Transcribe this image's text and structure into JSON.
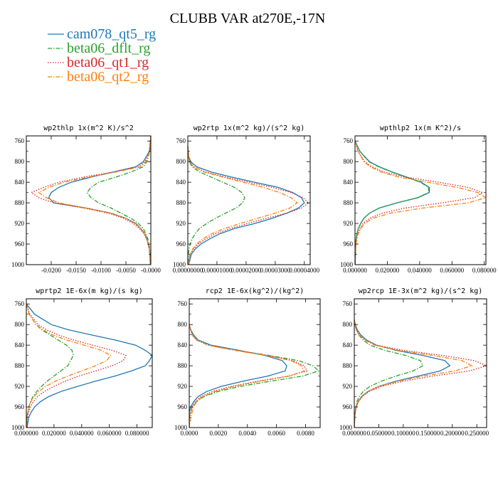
{
  "figure": {
    "title": "CLUBB VAR at270E,-17N"
  },
  "legend": [
    {
      "name": "cam078_qt5_rg",
      "color": "#1f77b4",
      "dash": "solid"
    },
    {
      "name": "beta06_dflt_rg",
      "color": "#2ca02c",
      "dash": "dashdot"
    },
    {
      "name": "beta06_qt1_rg",
      "color": "#d62728",
      "dash": "dotted"
    },
    {
      "name": "beta06_qt2_rg",
      "color": "#ff7f0e",
      "dash": "dashdot"
    }
  ],
  "chart_data": [
    {
      "type": "line",
      "title": "wp2thlp  1x(m^2 K)/s^2",
      "xlim": [
        -0.025,
        0.0
      ],
      "ylim": [
        1000,
        750
      ],
      "yticks": [
        "760",
        "800",
        "840",
        "880",
        "920",
        "960",
        "1000"
      ],
      "xticks": [
        {
          "v": -0.02,
          "t": "-0.0200"
        },
        {
          "v": -0.015,
          "t": "-0.0150"
        },
        {
          "v": -0.01,
          "t": "-0.0100"
        },
        {
          "v": -0.005,
          "t": "-0.0050"
        },
        {
          "v": 0.0,
          "t": "-0.0000"
        }
      ],
      "y": [
        750,
        780,
        800,
        810,
        820,
        830,
        840,
        850,
        860,
        870,
        880,
        890,
        900,
        910,
        920,
        930,
        940,
        950,
        960,
        970,
        980,
        1000
      ],
      "series": [
        {
          "legend": 0,
          "values": [
            0.0,
            -0.0003,
            -0.0015,
            -0.003,
            -0.0075,
            -0.012,
            -0.016,
            -0.0185,
            -0.02,
            -0.0205,
            -0.0195,
            -0.013,
            -0.008,
            -0.005,
            -0.003,
            -0.002,
            -0.0012,
            -0.0008,
            -0.0005,
            -0.0003,
            -0.0002,
            -0.0001
          ]
        },
        {
          "legend": 1,
          "values": [
            0.0,
            -0.0002,
            -0.0008,
            -0.0015,
            -0.004,
            -0.007,
            -0.0105,
            -0.012,
            -0.0128,
            -0.012,
            -0.0105,
            -0.008,
            -0.006,
            -0.004,
            -0.0025,
            -0.0015,
            -0.001,
            -0.0006,
            -0.0004,
            -0.0002,
            -0.0001,
            0.0
          ]
        },
        {
          "legend": 2,
          "values": [
            0.0,
            -0.0002,
            -0.0012,
            -0.0025,
            -0.0075,
            -0.0135,
            -0.0185,
            -0.0215,
            -0.024,
            -0.0225,
            -0.0195,
            -0.0135,
            -0.0085,
            -0.0055,
            -0.0035,
            -0.0023,
            -0.0014,
            -0.0009,
            -0.0005,
            -0.0003,
            -0.0002,
            -0.0001
          ]
        },
        {
          "legend": 3,
          "values": [
            0.0,
            -0.0002,
            -0.001,
            -0.002,
            -0.007,
            -0.0125,
            -0.0175,
            -0.0205,
            -0.0225,
            -0.021,
            -0.0185,
            -0.013,
            -0.008,
            -0.005,
            -0.0032,
            -0.002,
            -0.0012,
            -0.0008,
            -0.0005,
            -0.0003,
            -0.0002,
            -0.0001
          ]
        }
      ]
    },
    {
      "type": "line",
      "title": "wp2rtp  1x(m^2 kg)/(s^2 kg)",
      "xlim": [
        0.0,
        4.2e-05
      ],
      "ylim": [
        1000,
        750
      ],
      "yticks": [
        "760",
        "800",
        "840",
        "880",
        "920",
        "960",
        "1000"
      ],
      "xticks": [
        {
          "v": 0.0,
          "t": "0.00000000"
        },
        {
          "v": 1e-05,
          "t": "0.00001000"
        },
        {
          "v": 2e-05,
          "t": "0.00002000"
        },
        {
          "v": 3e-05,
          "t": "0.00003000"
        },
        {
          "v": 4e-05,
          "t": "0.00004000"
        }
      ],
      "y": [
        770,
        790,
        800,
        810,
        820,
        830,
        840,
        850,
        860,
        870,
        880,
        890,
        900,
        910,
        920,
        930,
        940,
        950,
        960,
        970,
        980,
        1000
      ],
      "series": [
        {
          "legend": 0,
          "values": [
            0.0,
            3e-07,
            1e-06,
            3e-06,
            8e-06,
            1.5e-05,
            2.3e-05,
            3.1e-05,
            3.6e-05,
            3.9e-05,
            4e-05,
            3.8e-05,
            3.4e-05,
            2.9e-05,
            2.3e-05,
            1.6e-05,
            1.1e-05,
            7.5e-06,
            4.5e-06,
            2.5e-06,
            1.2e-06,
            3e-07
          ]
        },
        {
          "legend": 1,
          "values": [
            0.0,
            2e-07,
            5e-07,
            1.5e-06,
            4e-06,
            8e-06,
            1.2e-05,
            1.6e-05,
            1.85e-05,
            1.95e-05,
            1.88e-05,
            1.65e-05,
            1.3e-05,
            9.5e-06,
            6.5e-06,
            4e-06,
            2.5e-06,
            1.5e-06,
            8e-07,
            4e-07,
            2e-07,
            0.0
          ]
        },
        {
          "legend": 2,
          "values": [
            0.0,
            2e-07,
            7e-07,
            2e-06,
            6e-06,
            1.3e-05,
            2.1e-05,
            2.9e-05,
            3.55e-05,
            3.95e-05,
            4.15e-05,
            3.9e-05,
            3.4e-05,
            2.7e-05,
            2.05e-05,
            1.45e-05,
            9.5e-06,
            6.2e-06,
            3.6e-06,
            1.9e-06,
            9e-07,
            2e-07
          ]
        },
        {
          "legend": 3,
          "values": [
            0.0,
            2e-07,
            6e-07,
            2e-06,
            5.5e-06,
            1.2e-05,
            1.9e-05,
            2.6e-05,
            3.15e-05,
            3.55e-05,
            3.75e-05,
            3.5e-05,
            3e-05,
            2.4e-05,
            1.8e-05,
            1.25e-05,
            8.2e-06,
            5.2e-06,
            3e-06,
            1.6e-06,
            7e-07,
            2e-07
          ]
        }
      ]
    },
    {
      "type": "line",
      "title": "wpthlp2  1x(m K^2)/s",
      "xlim": [
        0.0,
        0.081
      ],
      "ylim": [
        1000,
        750
      ],
      "yticks": [
        "760",
        "800",
        "840",
        "880",
        "920",
        "960",
        "1000"
      ],
      "xticks": [
        {
          "v": 0.0,
          "t": "0.000000"
        },
        {
          "v": 0.02,
          "t": "0.020000"
        },
        {
          "v": 0.04,
          "t": "0.040000"
        },
        {
          "v": 0.06,
          "t": "0.060000"
        },
        {
          "v": 0.08,
          "t": "0.080000"
        }
      ],
      "y": [
        760,
        780,
        800,
        810,
        820,
        830,
        840,
        850,
        860,
        870,
        880,
        890,
        900,
        910,
        920,
        930,
        940,
        950,
        960,
        980,
        1000
      ],
      "series": [
        {
          "legend": 0,
          "values": [
            0.0,
            0.003,
            0.009,
            0.015,
            0.023,
            0.032,
            0.041,
            0.046,
            0.046,
            0.039,
            0.026,
            0.015,
            0.009,
            0.0055,
            0.0035,
            0.002,
            0.0012,
            0.0007,
            0.0004,
            0.0002,
            0.0001
          ]
        },
        {
          "legend": 1,
          "values": [
            0.0,
            0.003,
            0.0085,
            0.0145,
            0.0225,
            0.0315,
            0.0405,
            0.0455,
            0.0455,
            0.0385,
            0.026,
            0.015,
            0.009,
            0.0055,
            0.0035,
            0.002,
            0.0012,
            0.0007,
            0.0004,
            0.0002,
            0.0001
          ]
        },
        {
          "legend": 2,
          "values": [
            0.0,
            0.002,
            0.006,
            0.0105,
            0.018,
            0.031,
            0.052,
            0.07,
            0.079,
            0.074,
            0.054,
            0.031,
            0.017,
            0.009,
            0.005,
            0.003,
            0.0017,
            0.001,
            0.0005,
            0.0002,
            0.0001
          ]
        },
        {
          "legend": 3,
          "values": [
            0.0,
            0.0018,
            0.0055,
            0.0095,
            0.016,
            0.027,
            0.045,
            0.063,
            0.076,
            0.081,
            0.07,
            0.042,
            0.022,
            0.011,
            0.006,
            0.0035,
            0.002,
            0.0012,
            0.0006,
            0.0003,
            0.0001
          ]
        }
      ]
    },
    {
      "type": "line",
      "title": "wprtp2  1E-6x(m kg)/(s kg)",
      "xlim": [
        0.0,
        0.091
      ],
      "ylim": [
        1000,
        750
      ],
      "yticks": [
        "760",
        "800",
        "840",
        "880",
        "920",
        "960",
        "1000"
      ],
      "xticks": [
        {
          "v": 0.0,
          "t": "0.000000"
        },
        {
          "v": 0.02,
          "t": "0.020000"
        },
        {
          "v": 0.04,
          "t": "0.040000"
        },
        {
          "v": 0.06,
          "t": "0.060000"
        },
        {
          "v": 0.08,
          "t": "0.080000"
        }
      ],
      "y": [
        760,
        780,
        800,
        810,
        820,
        830,
        840,
        850,
        860,
        870,
        880,
        890,
        900,
        910,
        920,
        930,
        940,
        950,
        960,
        970,
        980,
        1000
      ],
      "series": [
        {
          "legend": 0,
          "values": [
            0.0,
            0.006,
            0.018,
            0.03,
            0.047,
            0.064,
            0.079,
            0.086,
            0.091,
            0.089,
            0.086,
            0.076,
            0.064,
            0.05,
            0.037,
            0.025,
            0.016,
            0.01,
            0.006,
            0.0035,
            0.0018,
            0.0005
          ]
        },
        {
          "legend": 1,
          "values": [
            0.0,
            0.002,
            0.007,
            0.011,
            0.017,
            0.023,
            0.029,
            0.033,
            0.034,
            0.032,
            0.03,
            0.025,
            0.02,
            0.015,
            0.011,
            0.0075,
            0.0048,
            0.003,
            0.0018,
            0.001,
            0.0005,
            0.0001
          ]
        },
        {
          "legend": 2,
          "values": [
            0.0,
            0.0025,
            0.0085,
            0.0145,
            0.023,
            0.034,
            0.048,
            0.062,
            0.072,
            0.07,
            0.062,
            0.05,
            0.038,
            0.028,
            0.02,
            0.013,
            0.008,
            0.005,
            0.003,
            0.0017,
            0.0008,
            0.0002
          ]
        },
        {
          "legend": 3,
          "values": [
            0.0,
            0.002,
            0.007,
            0.012,
            0.019,
            0.029,
            0.042,
            0.054,
            0.061,
            0.058,
            0.05,
            0.04,
            0.03,
            0.021,
            0.014,
            0.009,
            0.0055,
            0.0033,
            0.002,
            0.0011,
            0.0005,
            0.0001
          ]
        }
      ]
    },
    {
      "type": "line",
      "title": "rcp2  1E-6x(kg^2)/(kg^2)",
      "xlim": [
        0.0,
        0.009
      ],
      "ylim": [
        1000,
        750
      ],
      "yticks": [
        "760",
        "800",
        "840",
        "880",
        "920",
        "960",
        "1000"
      ],
      "xticks": [
        {
          "v": 0.0,
          "t": "0.0000"
        },
        {
          "v": 0.002,
          "t": "0.0020"
        },
        {
          "v": 0.004,
          "t": "0.0040"
        },
        {
          "v": 0.006,
          "t": "0.0060"
        },
        {
          "v": 0.008,
          "t": "0.0080"
        }
      ],
      "y": [
        800,
        810,
        820,
        830,
        840,
        850,
        860,
        870,
        880,
        890,
        900,
        910,
        920,
        930,
        940,
        950,
        960,
        970,
        980,
        1000
      ],
      "series": [
        {
          "legend": 0,
          "values": [
            0.0,
            0.0001,
            0.0003,
            0.0006,
            0.0015,
            0.0034,
            0.0052,
            0.0064,
            0.0067,
            0.0066,
            0.0054,
            0.0037,
            0.0022,
            0.0012,
            0.0006,
            0.0003,
            0.0001,
            0.0,
            0.0,
            0.0
          ]
        },
        {
          "legend": 1,
          "values": [
            0.0,
            0.0001,
            0.0002,
            0.0005,
            0.0013,
            0.0032,
            0.0055,
            0.0075,
            0.0085,
            0.0089,
            0.0078,
            0.0056,
            0.0035,
            0.002,
            0.001,
            0.0005,
            0.0002,
            0.0001,
            0.0,
            0.0
          ]
        },
        {
          "legend": 2,
          "values": [
            0.0,
            0.0001,
            0.0002,
            0.0005,
            0.0013,
            0.0032,
            0.0054,
            0.0071,
            0.0079,
            0.0081,
            0.0068,
            0.0047,
            0.0029,
            0.0016,
            0.0008,
            0.0004,
            0.0002,
            0.0001,
            0.0,
            0.0
          ]
        },
        {
          "legend": 3,
          "values": [
            0.0,
            0.0001,
            0.0002,
            0.0005,
            0.0013,
            0.0031,
            0.0053,
            0.007,
            0.0077,
            0.0079,
            0.0069,
            0.0049,
            0.0031,
            0.0018,
            0.0009,
            0.0005,
            0.0003,
            0.0002,
            0.0001,
            0.0
          ]
        }
      ]
    },
    {
      "type": "line",
      "title": "wp2rcp  1E-3x(m^2 kg)/(s^2 kg)",
      "xlim": [
        0.0,
        0.27
      ],
      "ylim": [
        1000,
        750
      ],
      "yticks": [
        "760",
        "800",
        "840",
        "880",
        "920",
        "960",
        "1000"
      ],
      "xticks": [
        {
          "v": 0.0,
          "t": "0.000000"
        },
        {
          "v": 0.05,
          "t": "0.050000"
        },
        {
          "v": 0.1,
          "t": "0.100000"
        },
        {
          "v": 0.15,
          "t": "0.150000"
        },
        {
          "v": 0.2,
          "t": "0.200000"
        },
        {
          "v": 0.25,
          "t": "0.250000"
        }
      ],
      "y": [
        790,
        800,
        810,
        820,
        830,
        840,
        850,
        860,
        870,
        880,
        890,
        900,
        910,
        920,
        930,
        940,
        950,
        960,
        970,
        980,
        1000
      ],
      "series": [
        {
          "legend": 0,
          "values": [
            0.0,
            0.002,
            0.006,
            0.013,
            0.025,
            0.045,
            0.085,
            0.14,
            0.185,
            0.195,
            0.175,
            0.13,
            0.085,
            0.05,
            0.028,
            0.015,
            0.008,
            0.004,
            0.002,
            0.001,
            0.0
          ]
        },
        {
          "legend": 1,
          "values": [
            0.0,
            0.001,
            0.004,
            0.009,
            0.018,
            0.032,
            0.062,
            0.105,
            0.135,
            0.14,
            0.12,
            0.085,
            0.055,
            0.032,
            0.018,
            0.01,
            0.005,
            0.003,
            0.0015,
            0.0007,
            0.0
          ]
        },
        {
          "legend": 2,
          "values": [
            0.0,
            0.001,
            0.004,
            0.01,
            0.022,
            0.045,
            0.1,
            0.18,
            0.245,
            0.27,
            0.235,
            0.16,
            0.1,
            0.055,
            0.03,
            0.016,
            0.008,
            0.004,
            0.002,
            0.001,
            0.0
          ]
        },
        {
          "legend": 3,
          "values": [
            0.0,
            0.001,
            0.004,
            0.01,
            0.021,
            0.042,
            0.09,
            0.16,
            0.22,
            0.24,
            0.205,
            0.14,
            0.09,
            0.05,
            0.027,
            0.014,
            0.007,
            0.0035,
            0.0017,
            0.0008,
            0.0
          ]
        }
      ]
    }
  ]
}
